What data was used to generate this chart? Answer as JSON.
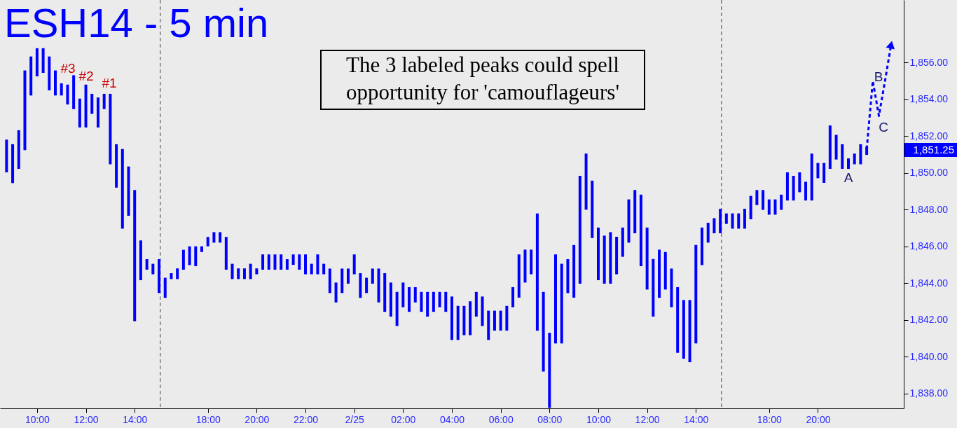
{
  "chart_data": {
    "type": "bar",
    "title": "ESH14 - 5 min",
    "categories": [
      null,
      null,
      null,
      null,
      null,
      "10:00",
      null,
      null,
      null,
      null,
      null,
      null,
      null,
      "12:00",
      null,
      null,
      null,
      null,
      null,
      null,
      null,
      "14:00",
      null,
      null,
      null,
      null,
      null,
      null,
      null,
      null,
      null,
      null,
      null,
      "18:00",
      null,
      null,
      null,
      null,
      null,
      null,
      null,
      "20:00",
      null,
      null,
      null,
      null,
      null,
      null,
      null,
      "22:00",
      null,
      null,
      null,
      null,
      null,
      null,
      null,
      "2/25",
      null,
      null,
      null,
      null,
      null,
      null,
      null,
      "02:00",
      null,
      null,
      null,
      null,
      null,
      null,
      null,
      "04:00",
      null,
      null,
      null,
      null,
      null,
      null,
      null,
      "06:00",
      null,
      null,
      null,
      null,
      null,
      null,
      null,
      "08:00",
      null,
      null,
      null,
      null,
      null,
      null,
      null,
      "10:00",
      null,
      null,
      null,
      null,
      null,
      null,
      null,
      "12:00",
      null,
      null,
      null,
      null,
      null,
      null,
      null,
      "14:00",
      null,
      null,
      null,
      null,
      null,
      null,
      null,
      null,
      null,
      null,
      null,
      "18:00",
      null,
      null,
      null,
      null,
      null,
      null,
      null,
      "20:00",
      null,
      null,
      null,
      null,
      null,
      null,
      null,
      null,
      null,
      null,
      null,
      null,
      null
    ],
    "ylim": [
      1837.2,
      1859.4
    ],
    "yticks": [
      {
        "value": 1838,
        "label": "1,838.00"
      },
      {
        "value": 1840,
        "label": "1,840.00"
      },
      {
        "value": 1842,
        "label": "1,842.00"
      },
      {
        "value": 1844,
        "label": "1,844.00"
      },
      {
        "value": 1846,
        "label": "1,846.00"
      },
      {
        "value": 1848,
        "label": "1,848.00"
      },
      {
        "value": 1850,
        "label": "1,850.00"
      },
      {
        "value": 1852,
        "label": "1,852.00"
      },
      {
        "value": 1854,
        "label": "1,854.00"
      },
      {
        "value": 1856,
        "label": "1,856.00"
      }
    ],
    "grid": false,
    "series": [
      {
        "color": "#0000ff",
        "base": [
          1850.03,
          1849.45,
          1850.22,
          1851.24,
          1854.21,
          1855.25,
          1855.44,
          1854.49,
          1854.21,
          1854.21,
          1853.72,
          1853.47,
          1852.47,
          1852.47,
          1853.21,
          1852.47,
          1853.47,
          1850.47,
          1849.2,
          1846.97,
          1847.67,
          1841.94,
          1844.17,
          1844.74,
          1844.49,
          1843.47,
          1843.21,
          1844.23,
          1844.23,
          1844.74,
          1844.99,
          1844.93,
          1845.7,
          1846.01,
          1846.21,
          1846.21,
          1844.74,
          1844.23,
          1844.23,
          1844.23,
          1844.23,
          1844.49,
          1844.74,
          1844.74,
          1844.74,
          1844.74,
          1844.74,
          1845.0,
          1844.74,
          1844.49,
          1844.49,
          1844.49,
          1844.49,
          1843.47,
          1842.96,
          1843.47,
          1843.98,
          1844.49,
          1843.21,
          1843.47,
          1843.98,
          1842.96,
          1842.45,
          1842.19,
          1841.68,
          1842.7,
          1842.45,
          1842.96,
          1842.45,
          1842.19,
          1842.45,
          1842.7,
          1842.45,
          1840.92,
          1840.92,
          1841.18,
          1841.18,
          1842.19,
          1841.68,
          1840.92,
          1841.43,
          1841.43,
          1841.43,
          1842.7,
          1843.22,
          1844.04,
          1844.49,
          1841.43,
          1839.2,
          1837.23,
          1840.73,
          1840.73,
          1843.47,
          1843.22,
          1843.98,
          1848.0,
          1846.46,
          1844.17,
          1843.98,
          1843.98,
          1844.49,
          1845.44,
          1846.21,
          1846.72,
          1844.93,
          1843.66,
          1842.19,
          1843.21,
          1843.66,
          1842.7,
          1840.22,
          1839.9,
          1839.71,
          1840.73,
          1844.99,
          1846.21,
          1846.72,
          1846.72,
          1847.23,
          1846.97,
          1846.97,
          1846.97,
          1847.48,
          1848.25,
          1847.99,
          1847.73,
          1847.73,
          1847.99,
          1848.5,
          1848.5,
          1848.95,
          1848.5,
          1848.5,
          1849.71,
          1849.46,
          1850.22,
          1850.73,
          1850.22,
          1850.22,
          1850.47,
          1850.47,
          1850.98,
          null,
          null,
          null,
          null,
          null
        ],
        "values": [
          1.78,
          2.11,
          2.1,
          4.33,
          2.12,
          1.53,
          1.34,
          1.84,
          1.36,
          0.66,
          1.08,
          1.84,
          1.57,
          2.33,
          1.09,
          1.63,
          0.83,
          3.83,
          2.36,
          4.33,
          2.68,
          7.13,
          2.16,
          0.57,
          0.57,
          1.84,
          1.09,
          0.32,
          0.58,
          1.08,
          1.02,
          1.08,
          0.31,
          0.51,
          0.57,
          0.57,
          1.78,
          0.83,
          0.58,
          0.58,
          0.83,
          0.32,
          0.83,
          0.83,
          0.83,
          0.83,
          0.57,
          0.57,
          0.83,
          1.08,
          0.57,
          1.08,
          0.57,
          1.33,
          1.08,
          1.33,
          0.82,
          1.08,
          1.34,
          0.83,
          0.82,
          1.84,
          2.1,
          1.85,
          1.85,
          1.34,
          1.34,
          0.83,
          1.08,
          1.34,
          1.08,
          0.83,
          1.08,
          2.36,
          1.85,
          1.59,
          1.84,
          1.34,
          1.6,
          1.59,
          1.08,
          1.08,
          1.34,
          1.09,
          2.35,
          1.79,
          1.34,
          6.37,
          4.33,
          4.08,
          4.84,
          4.33,
          1.84,
          2.86,
          5.86,
          3.05,
          3.12,
          2.86,
          2.61,
          2.8,
          2.04,
          1.59,
          2.35,
          2.35,
          3.89,
          3.37,
          3.13,
          2.62,
          2.04,
          2.1,
          3.57,
          3.19,
          3.38,
          5.35,
          2.04,
          1.08,
          0.82,
          1.33,
          0.57,
          0.83,
          0.83,
          1.08,
          1.27,
          0.82,
          1.08,
          0.83,
          0.83,
          0.83,
          1.53,
          1.34,
          1.08,
          1.02,
          2.55,
          0.83,
          1.08,
          2.36,
          1.34,
          1.34,
          0.57,
          0.58,
          1.09,
          0.45,
          null,
          null,
          null,
          null,
          null
        ]
      },
      {
        "type": "line",
        "color": "#0000ff",
        "line_style": "dashed",
        "values": [
          null,
          null,
          null,
          null,
          null,
          null,
          null,
          null,
          null,
          null,
          null,
          null,
          null,
          null,
          null,
          null,
          null,
          null,
          null,
          null,
          null,
          null,
          null,
          null,
          null,
          null,
          null,
          null,
          null,
          null,
          null,
          null,
          null,
          null,
          null,
          null,
          null,
          null,
          null,
          null,
          null,
          null,
          null,
          null,
          null,
          null,
          null,
          null,
          null,
          null,
          null,
          null,
          null,
          null,
          null,
          null,
          null,
          null,
          null,
          null,
          null,
          null,
          null,
          null,
          null,
          null,
          null,
          null,
          null,
          null,
          null,
          null,
          null,
          null,
          null,
          null,
          null,
          null,
          null,
          null,
          null,
          null,
          null,
          null,
          null,
          null,
          null,
          null,
          null,
          null,
          null,
          null,
          null,
          null,
          null,
          null,
          null,
          null,
          null,
          null,
          null,
          null,
          null,
          null,
          null,
          null,
          null,
          null,
          null,
          null,
          null,
          null,
          null,
          null,
          null,
          null,
          null,
          null,
          null,
          null,
          null,
          null,
          null,
          null,
          null,
          null,
          null,
          null,
          null,
          null,
          null,
          null,
          null,
          null,
          null,
          null,
          null,
          null,
          null,
          null,
          null,
          1851.3,
          1855.0,
          1853.1,
          1855.0,
          1856.97,
          null
        ]
      }
    ],
    "annotations": [
      "#3",
      "#2",
      "#1",
      "A",
      "B",
      "C",
      "1,851.25",
      "The 3 labeled peaks could spell opportunity for 'camouflageurs'"
    ]
  }
}
